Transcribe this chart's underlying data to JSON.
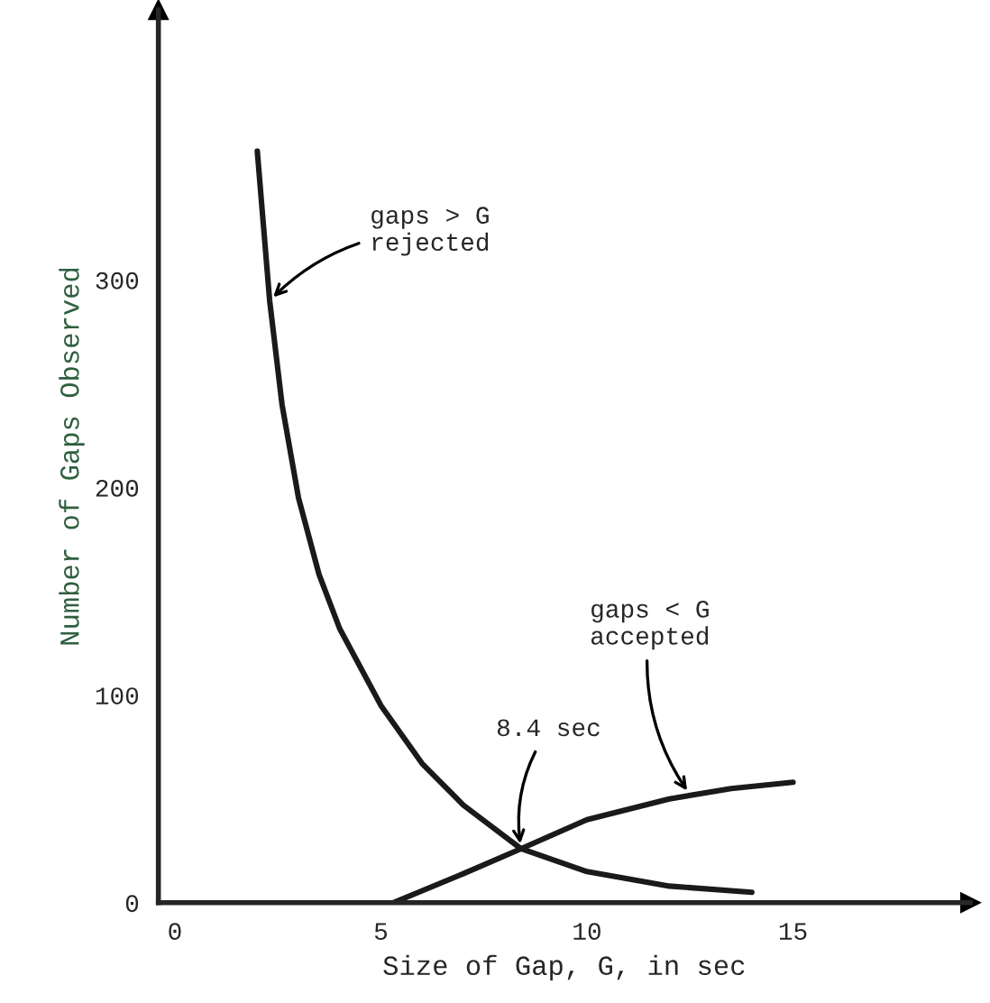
{
  "chart_data": {
    "type": "line",
    "xlabel": "Size of Gap, G, in sec",
    "ylabel": "Number of Gaps Observed",
    "series": [
      {
        "color": "#1a1a1a",
        "x": [
          2,
          2.3,
          2.6,
          3,
          3.5,
          4,
          5,
          6,
          7,
          8.4,
          10,
          12,
          14
        ],
        "values": [
          362,
          290,
          240,
          195,
          158,
          132,
          95,
          67,
          47,
          26,
          15,
          8,
          5
        ]
      },
      {
        "color": "#1a1a1a",
        "x": [
          5.3,
          7,
          8.4,
          10,
          12,
          13.5,
          15
        ],
        "values": [
          0,
          14,
          26,
          40,
          50,
          55,
          58
        ]
      }
    ],
    "annotations": [
      {
        "text": "gaps > G\nrejected",
        "x": 2.3,
        "y": 290
      },
      {
        "text": "gaps < G\naccepted",
        "x": 12.5,
        "y": 52
      },
      {
        "text": "8.4 sec",
        "x": 8.4,
        "y": 26
      }
    ],
    "xlim": [
      -0.4,
      19.3
    ],
    "ylim": [
      0,
      430
    ],
    "xticks": [
      0,
      5,
      10,
      15
    ],
    "yticks": [
      0,
      100,
      200,
      300
    ],
    "grid": false,
    "legend": false
  }
}
